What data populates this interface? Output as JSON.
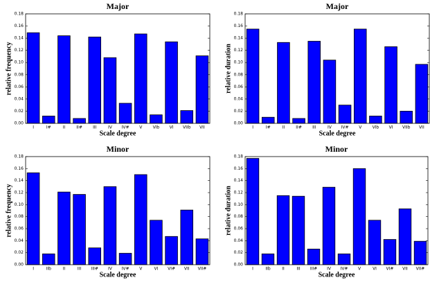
{
  "chart_data": [
    {
      "type": "bar",
      "title": "Major",
      "xlabel": "Scale degree",
      "ylabel": "relative frequency",
      "color": "#0000ff",
      "categories": [
        "I",
        "I#",
        "II",
        "II#",
        "III",
        "IV",
        "IV#",
        "V",
        "VIb",
        "VI",
        "VIIb",
        "VII"
      ],
      "values": [
        0.149,
        0.012,
        0.144,
        0.008,
        0.142,
        0.108,
        0.033,
        0.147,
        0.014,
        0.134,
        0.021,
        0.111
      ],
      "ylim": [
        0,
        0.18
      ],
      "yticks": [
        {
          "value": 0,
          "label": "0.00"
        },
        0.02,
        0.04,
        0.06,
        0.08,
        {
          "value": 0.1,
          "label": "0.10"
        },
        0.12,
        0.14,
        0.16,
        0.18
      ]
    },
    {
      "type": "bar",
      "title": "Major",
      "xlabel": "Scale degree",
      "ylabel": "relative duration",
      "color": "#0000ff",
      "categories": [
        "I",
        "I#",
        "II",
        "II#",
        "III",
        "IV",
        "IV#",
        "V",
        "VIb",
        "VI",
        "VIIb",
        "VII"
      ],
      "values": [
        0.155,
        0.01,
        0.133,
        0.008,
        0.135,
        0.104,
        0.03,
        0.155,
        0.012,
        0.126,
        0.02,
        0.097
      ],
      "ylim": [
        0,
        0.18
      ],
      "yticks": [
        {
          "value": 0,
          "label": "0.00"
        },
        0.02,
        0.04,
        0.06,
        0.08,
        {
          "value": 0.1,
          "label": "0.10"
        },
        0.12,
        0.14,
        0.16,
        0.18
      ]
    },
    {
      "type": "bar",
      "title": "Minor",
      "xlabel": "Scale degree",
      "ylabel": "relative frequency",
      "color": "#0000ff",
      "categories": [
        "I",
        "IIb",
        "II",
        "III",
        "III#",
        "IV",
        "IV#",
        "V",
        "VI",
        "VI#",
        "VII",
        "VII#"
      ],
      "values": [
        0.153,
        0.018,
        0.121,
        0.117,
        0.028,
        0.13,
        0.019,
        0.15,
        0.074,
        0.047,
        0.091,
        0.043
      ],
      "ylim": [
        0,
        0.18
      ],
      "yticks": [
        {
          "value": 0,
          "label": "0.00"
        },
        0.02,
        0.04,
        0.06,
        0.08,
        {
          "value": 0.1,
          "label": "0.10"
        },
        0.12,
        0.14,
        0.16,
        0.18
      ]
    },
    {
      "type": "bar",
      "title": "Minor",
      "xlabel": "Scale degree",
      "ylabel": "relative duration",
      "color": "#0000ff",
      "categories": [
        "I",
        "IIb",
        "II",
        "III",
        "III#",
        "IV",
        "IV#",
        "V",
        "VI",
        "VI#",
        "VII",
        "VII#"
      ],
      "values": [
        0.177,
        0.018,
        0.115,
        0.114,
        0.026,
        0.129,
        0.018,
        0.16,
        0.074,
        0.042,
        0.093,
        0.039
      ],
      "ylim": [
        0,
        0.18
      ],
      "yticks": [
        {
          "value": 0,
          "label": "0.00"
        },
        0.02,
        0.04,
        0.06,
        0.08,
        {
          "value": 0.1,
          "label": "0.10"
        },
        0.12,
        0.14,
        0.16,
        0.18
      ]
    }
  ]
}
